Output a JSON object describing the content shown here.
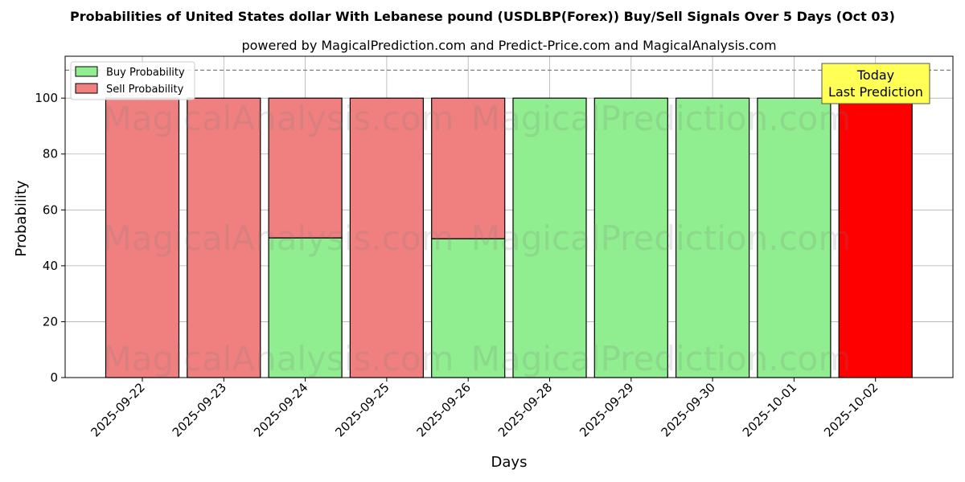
{
  "chart_data": {
    "type": "bar",
    "stacked": true,
    "title": "Probabilities of United States dollar With Lebanese pound (USDLBP(Forex)) Buy/Sell Signals Over 5 Days (Oct 03)",
    "subtitle": "powered by MagicalPrediction.com and Predict-Price.com and MagicalAnalysis.com",
    "xlabel": "Days",
    "ylabel": "Probability",
    "ylim": [
      0,
      115
    ],
    "yticks": [
      0,
      20,
      40,
      60,
      80,
      100
    ],
    "grid": true,
    "legend_position": "top-left",
    "categories": [
      "2025-09-22",
      "2025-09-23",
      "2025-09-24",
      "2025-09-25",
      "2025-09-26",
      "2025-09-28",
      "2025-09-29",
      "2025-09-30",
      "2025-10-01",
      "2025-10-02"
    ],
    "series": [
      {
        "name": "Buy Probability",
        "color": "#90ee90",
        "values": [
          0,
          0,
          50,
          0,
          49.7,
          100,
          100,
          100,
          100,
          0
        ]
      },
      {
        "name": "Sell Probability",
        "color": "#f08080",
        "values": [
          100,
          100,
          50,
          100,
          50.3,
          0,
          0,
          0,
          0,
          100
        ]
      }
    ],
    "highlight": {
      "category_index": 9,
      "color": "#ff0000"
    },
    "reference_line": {
      "y": 110,
      "style": "dashed"
    },
    "annotation": {
      "line1": "Today",
      "line2": "Last Prediction",
      "color": "#ffff55"
    },
    "watermarks": [
      "MagicalAnalysis.com",
      "MagicalPrediction.com"
    ]
  }
}
